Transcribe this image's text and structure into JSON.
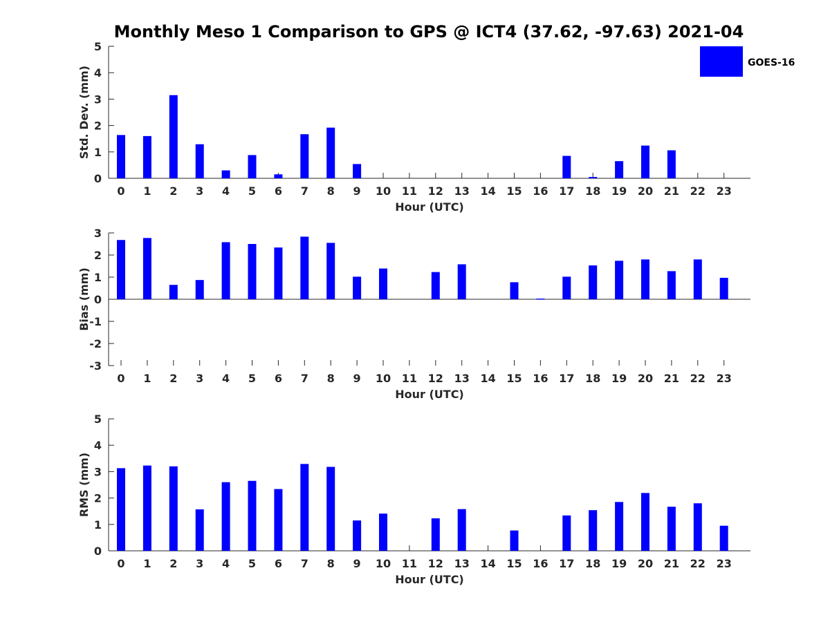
{
  "chart_data": {
    "title": "Monthly Meso 1 Comparison to GPS @ ICT4 (37.62, -97.63) 2021-04",
    "legend": {
      "label": "GOES-16",
      "color": "#0000ff",
      "placement": "top-right"
    },
    "panels": [
      {
        "type": "bar",
        "xlabel": "Hour (UTC)",
        "ylabel": "Std. Dev. (mm)",
        "ylim": [
          0,
          5
        ],
        "yticks": [
          0,
          1,
          2,
          3,
          4,
          5
        ],
        "categories": [
          "0",
          "1",
          "2",
          "3",
          "4",
          "5",
          "6",
          "7",
          "8",
          "9",
          "10",
          "11",
          "12",
          "13",
          "14",
          "15",
          "16",
          "17",
          "18",
          "19",
          "20",
          "21",
          "22",
          "23"
        ],
        "series": [
          {
            "name": "GOES-16",
            "values": [
              1.64,
              1.6,
              3.15,
              1.29,
              0.3,
              0.88,
              0.15,
              1.67,
              1.92,
              0.54,
              null,
              null,
              null,
              null,
              null,
              null,
              null,
              0.85,
              0.05,
              0.65,
              1.24,
              1.06,
              null,
              null
            ]
          }
        ]
      },
      {
        "type": "bar",
        "xlabel": "Hour (UTC)",
        "ylabel": "Bias (mm)",
        "ylim": [
          -3,
          3
        ],
        "yticks": [
          -3,
          -2,
          -1,
          0,
          1,
          2,
          3
        ],
        "categories": [
          "0",
          "1",
          "2",
          "3",
          "4",
          "5",
          "6",
          "7",
          "8",
          "9",
          "10",
          "11",
          "12",
          "13",
          "14",
          "15",
          "16",
          "17",
          "18",
          "19",
          "20",
          "21",
          "22",
          "23"
        ],
        "series": [
          {
            "name": "GOES-16",
            "values": [
              2.68,
              2.77,
              0.65,
              0.87,
              2.58,
              2.5,
              2.34,
              2.83,
              2.55,
              1.02,
              1.39,
              null,
              1.23,
              1.58,
              null,
              0.77,
              0.03,
              1.02,
              1.53,
              1.74,
              1.8,
              1.27,
              1.8,
              0.97
            ]
          }
        ]
      },
      {
        "type": "bar",
        "xlabel": "Hour (UTC)",
        "ylabel": "RMS (mm)",
        "ylim": [
          0,
          5
        ],
        "yticks": [
          0,
          1,
          2,
          3,
          4,
          5
        ],
        "categories": [
          "0",
          "1",
          "2",
          "3",
          "4",
          "5",
          "6",
          "7",
          "8",
          "9",
          "10",
          "11",
          "12",
          "13",
          "14",
          "15",
          "16",
          "17",
          "18",
          "19",
          "20",
          "21",
          "22",
          "23"
        ],
        "series": [
          {
            "name": "GOES-16",
            "values": [
              3.13,
              3.23,
              3.2,
              1.57,
              2.6,
              2.65,
              2.34,
              3.29,
              3.18,
              1.15,
              1.41,
              null,
              1.23,
              1.58,
              null,
              0.77,
              null,
              1.34,
              1.54,
              1.85,
              2.19,
              1.67,
              1.8,
              0.95
            ]
          }
        ]
      }
    ]
  }
}
